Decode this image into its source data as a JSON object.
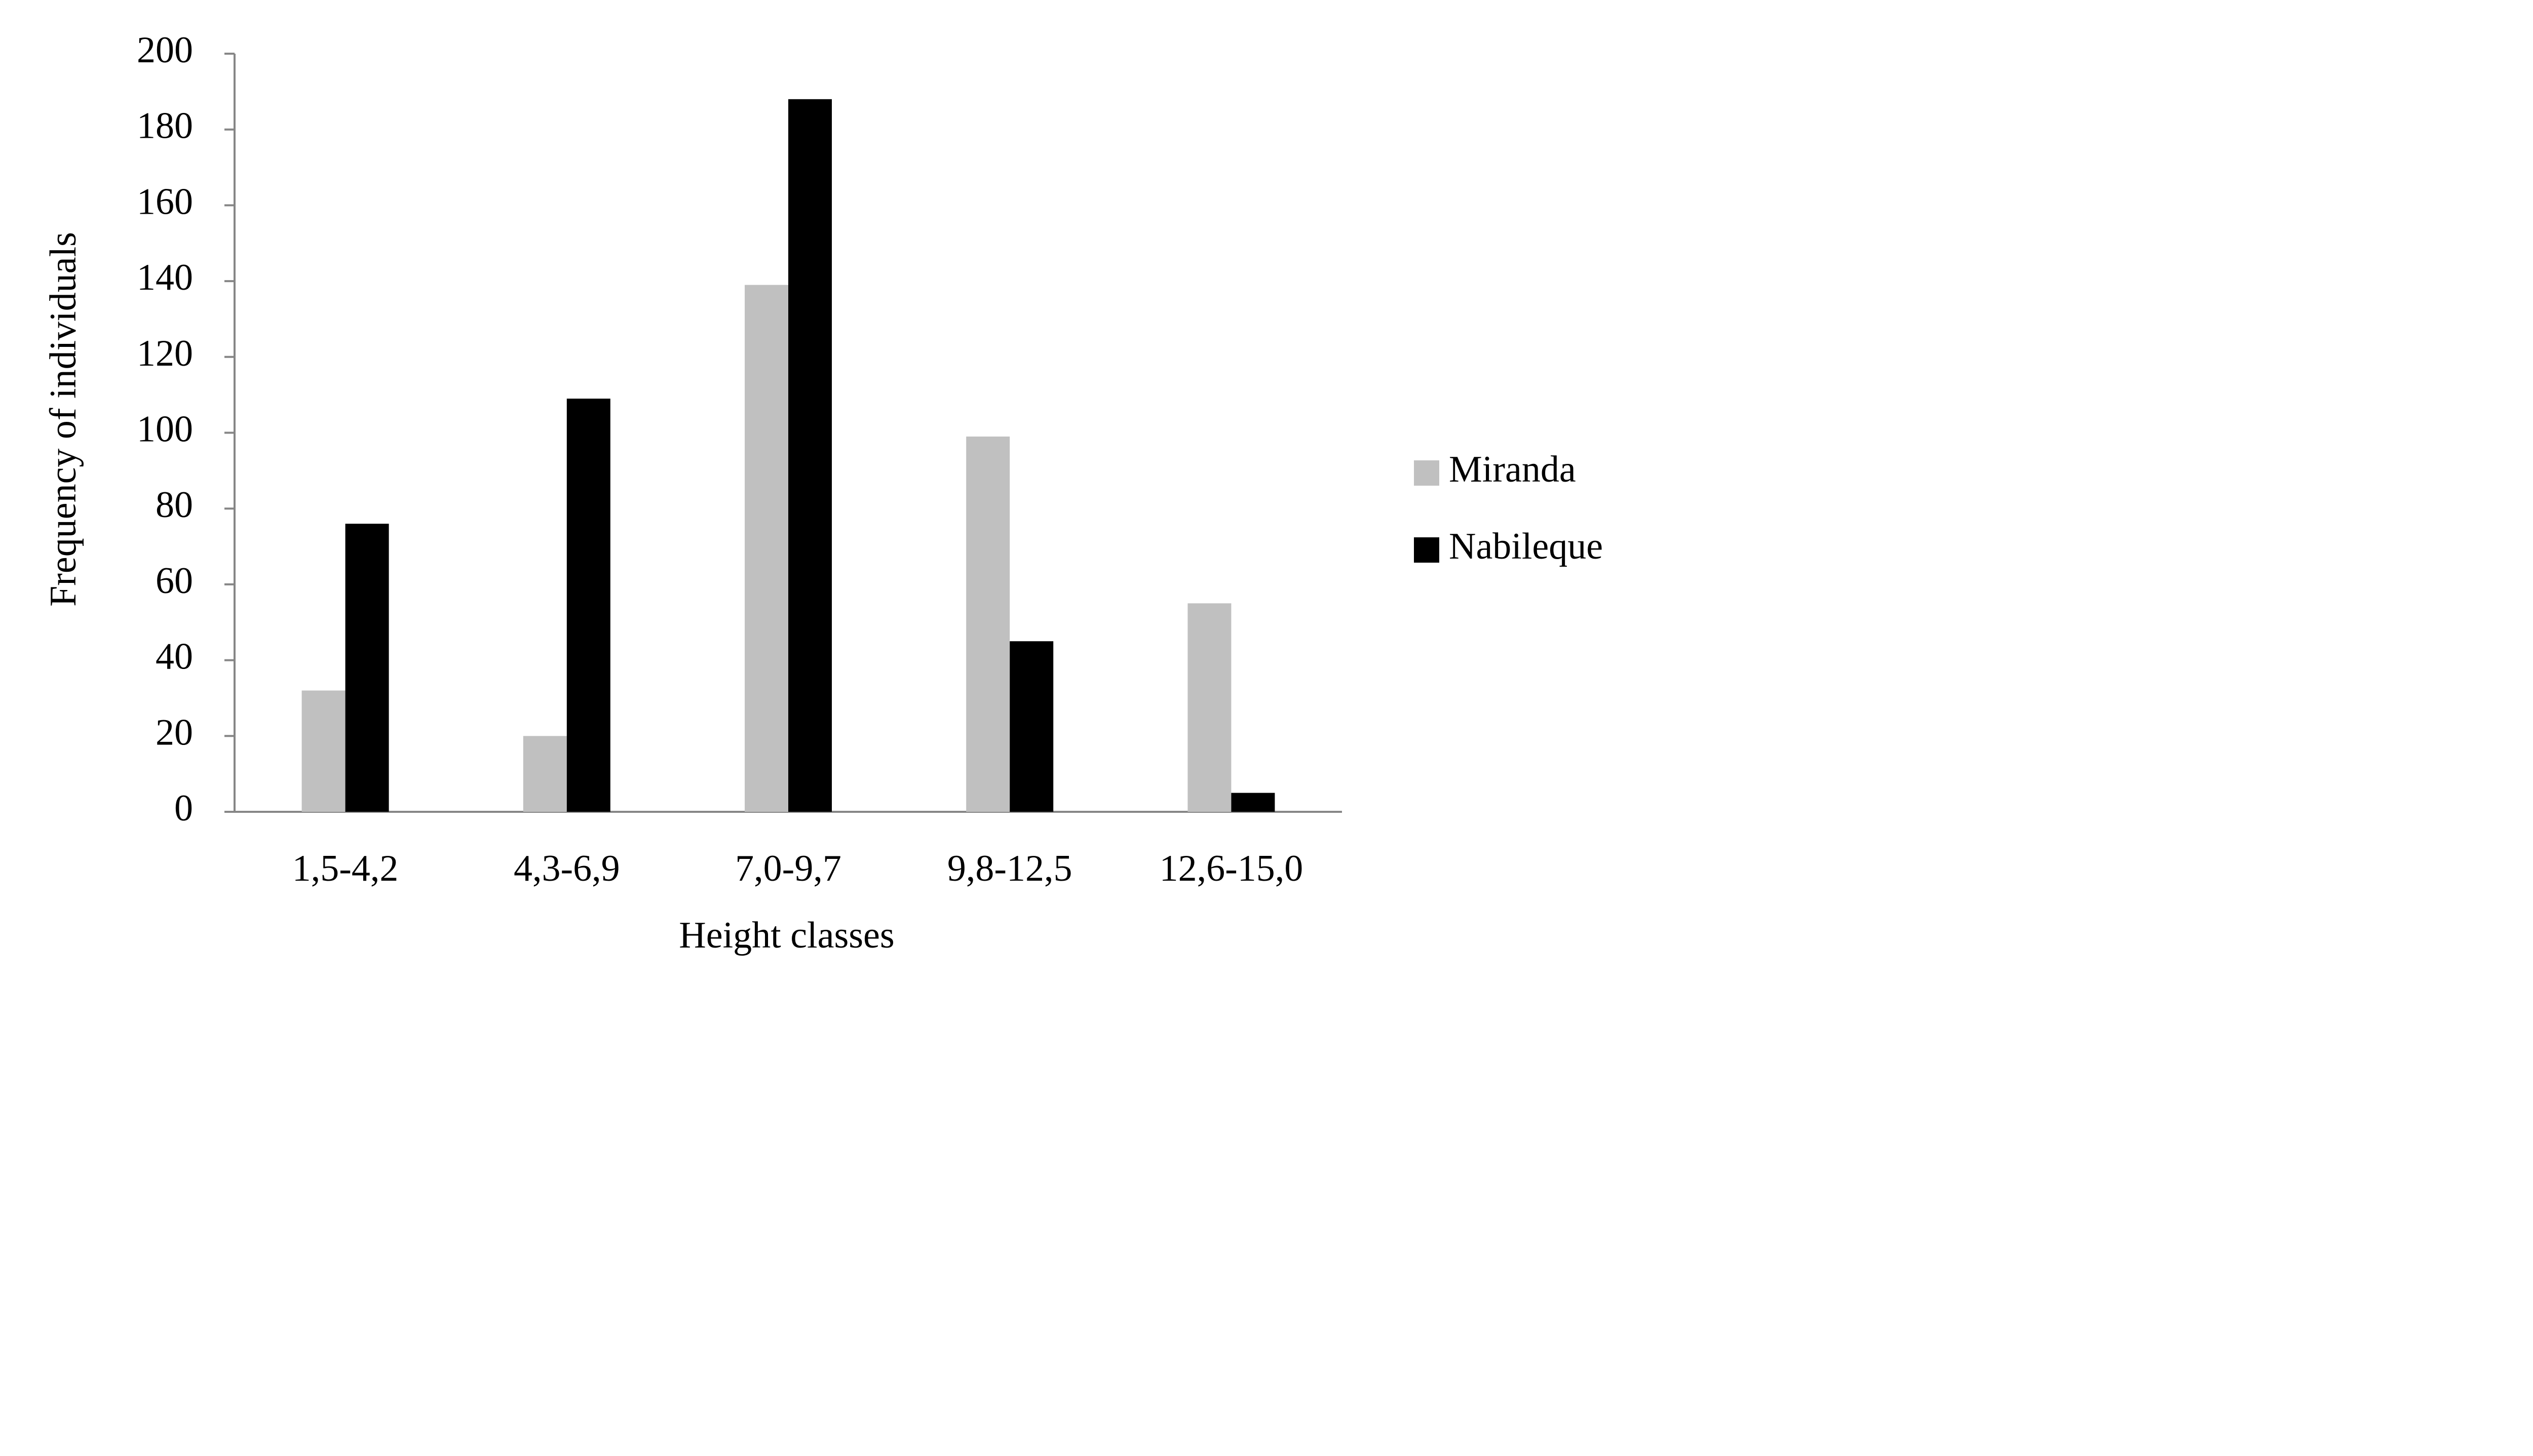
{
  "chart_data": {
    "type": "bar",
    "categories": [
      "1,5-4,2",
      "4,3-6,9",
      "7,0-9,7",
      "9,8-12,5",
      "12,6-15,0"
    ],
    "series": [
      {
        "name": "Miranda",
        "color": "#c0c0c0",
        "values": [
          32,
          20,
          139,
          99,
          55
        ]
      },
      {
        "name": "Nabileque",
        "color": "#000000",
        "values": [
          76,
          109,
          188,
          45,
          5
        ]
      }
    ],
    "xlabel": "Height classes",
    "ylabel": "Frequency of individuals",
    "ylim": [
      0,
      200
    ],
    "yticks": [
      0,
      20,
      40,
      60,
      80,
      100,
      120,
      140,
      160,
      180,
      200
    ],
    "grid": false,
    "legend": "right"
  }
}
